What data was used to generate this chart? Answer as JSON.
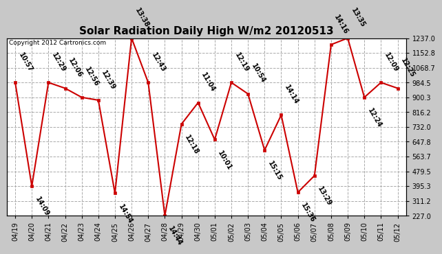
{
  "title": "Solar Radiation Daily High W/m2 20120513",
  "copyright": "Copyright 2012 Cartronics.com",
  "background_color": "#c8c8c8",
  "plot_bg_color": "#ffffff",
  "line_color": "#cc0000",
  "marker_color": "#cc0000",
  "grid_color": "#aaaaaa",
  "ylim": [
    227.0,
    1237.0
  ],
  "yticks": [
    227.0,
    311.2,
    395.3,
    479.5,
    563.7,
    647.8,
    732.0,
    816.2,
    900.3,
    984.5,
    1068.7,
    1152.8,
    1237.0
  ],
  "dates": [
    "04/19",
    "04/20",
    "04/21",
    "04/22",
    "04/23",
    "04/24",
    "04/25",
    "04/26",
    "04/27",
    "04/28",
    "04/29",
    "04/30",
    "05/01",
    "05/02",
    "05/03",
    "05/04",
    "05/05",
    "05/06",
    "05/07",
    "05/08",
    "05/09",
    "05/10",
    "05/11",
    "05/12"
  ],
  "values": [
    984.5,
    395.3,
    984.5,
    952.0,
    900.3,
    884.0,
    355.0,
    1237.0,
    984.5,
    227.0,
    748.0,
    870.0,
    660.0,
    984.5,
    920.0,
    600.0,
    800.0,
    360.0,
    455.0,
    1200.0,
    1237.0,
    900.3,
    984.5,
    952.0
  ],
  "labels": [
    "10:57",
    "14:09",
    "12:29",
    "12:06",
    "12:56",
    "12:39",
    "14:54",
    "13:38",
    "12:43",
    "14:44",
    "12:18",
    "11:04",
    "10:01",
    "12:19",
    "10:54",
    "15:15",
    "14:14",
    "15:36",
    "13:29",
    "14:16",
    "13:35",
    "12:24",
    "12:09",
    "12:25"
  ],
  "label_above": [
    true,
    false,
    true,
    true,
    true,
    true,
    false,
    true,
    true,
    false,
    false,
    true,
    false,
    true,
    true,
    false,
    true,
    false,
    false,
    true,
    true,
    false,
    true,
    true
  ],
  "title_fontsize": 11,
  "tick_fontsize": 7,
  "label_fontsize": 7
}
